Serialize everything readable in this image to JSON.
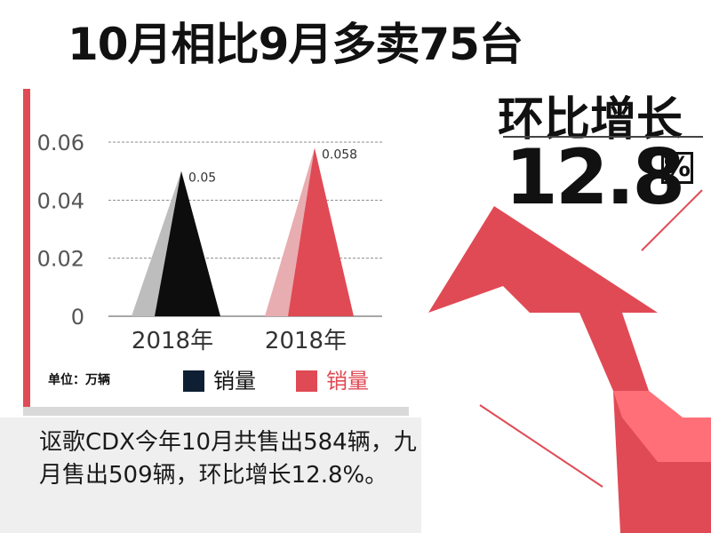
{
  "headline": "10月相比9月多卖75台",
  "growth": {
    "label": "环比增长",
    "value": "12.8",
    "percent_sign": "%"
  },
  "unit_label": "单位：万辆",
  "legend": [
    {
      "label": "销量",
      "color": "#0f1f33"
    },
    {
      "label": "销量",
      "color": "#e04a55"
    }
  ],
  "caption": "讴歌CDX今年10月共售出584辆，九月售出509辆，环比增长12.8%。",
  "colors": {
    "accent_red": "#e04a55",
    "dark": "#0d0d0d",
    "panel_red": "#e8525c"
  },
  "chart_data": {
    "type": "bar",
    "categories": [
      "2018年",
      "2018年"
    ],
    "values": [
      0.05,
      0.058
    ],
    "data_labels": [
      "0.05",
      "0.058"
    ],
    "colors": [
      "#0d0d0d",
      "#e04a55"
    ],
    "ylim": [
      0,
      0.06
    ],
    "yticks": [
      "0",
      "0.02",
      "0.04",
      "0.06"
    ],
    "grid": true,
    "legend_position": "bottom"
  }
}
